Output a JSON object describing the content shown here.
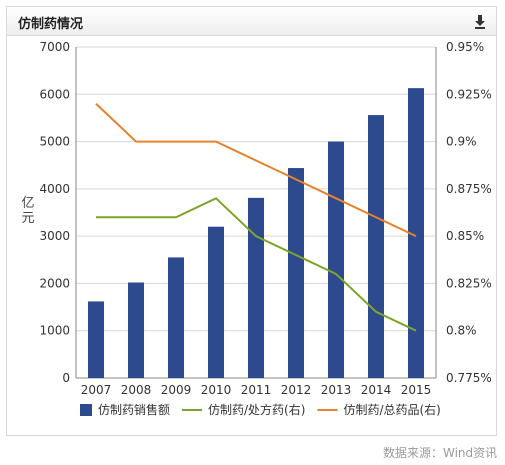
{
  "header": {
    "title": "仿制药情况",
    "download_icon": "download-icon"
  },
  "source": "数据来源：Wind资讯",
  "chart_data": {
    "type": "bar+line",
    "title": "",
    "categories": [
      "2007",
      "2008",
      "2009",
      "2010",
      "2011",
      "2012",
      "2013",
      "2014",
      "2015"
    ],
    "y_left": {
      "label": "亿元",
      "min": 0,
      "max": 7000,
      "ticks": [
        "0",
        "1000",
        "2000",
        "3000",
        "4000",
        "5000",
        "6000",
        "7000"
      ]
    },
    "y_right": {
      "min": 0.775,
      "max": 0.95,
      "ticks": [
        "0.775%",
        "0.8%",
        "0.825%",
        "0.85%",
        "0.875%",
        "0.9%",
        "0.925%",
        "0.95%"
      ]
    },
    "grid": true,
    "legend_position": "bottom-left",
    "series": [
      {
        "name": "仿制药销售额",
        "kind": "bar",
        "axis": "left",
        "color": "#2e4a8f",
        "values": [
          1620,
          2020,
          2550,
          3200,
          3810,
          4440,
          5000,
          5560,
          6130
        ]
      },
      {
        "name": "仿制药/处方药(右)",
        "kind": "line",
        "axis": "right",
        "color": "#7ba62a",
        "values": [
          0.86,
          0.86,
          0.86,
          0.87,
          0.85,
          0.84,
          0.83,
          0.81,
          0.8
        ]
      },
      {
        "name": "仿制药/总药品(右)",
        "kind": "line",
        "axis": "right",
        "color": "#e8822a",
        "values": [
          0.92,
          0.9,
          0.9,
          0.9,
          0.89,
          0.88,
          0.87,
          0.86,
          0.85
        ]
      }
    ]
  }
}
